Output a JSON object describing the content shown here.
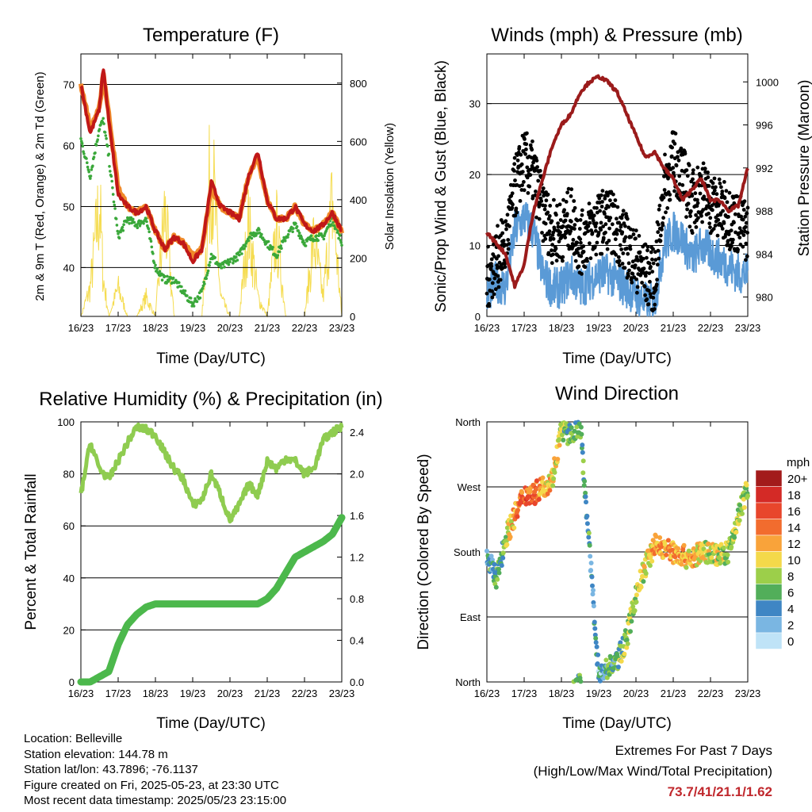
{
  "colors": {
    "t2m": "#c01818",
    "t9m": "#f08a2a",
    "td": "#3aa83a",
    "solar": "#f5dc50",
    "gust": "#000000",
    "wind": "#5a9ad6",
    "pressure": "#9b1b1b",
    "rh": "#8fcc50",
    "rain": "#4cb84c"
  },
  "time_ticks": [
    "16/23",
    "17/23",
    "18/23",
    "19/23",
    "20/23",
    "21/23",
    "22/23",
    "23/23"
  ],
  "panels": {
    "temperature": {
      "title": "Temperature (F)",
      "xlabel": "Time (Day/UTC)",
      "ylabel": "2m & 9m T (Red, Orange) & 2m Td (Green)",
      "ylabel2": "Solar Insolation (Yellow)",
      "y_ticks": [
        "70",
        "60",
        "50",
        "40"
      ],
      "y2_ticks": [
        "800",
        "600",
        "400",
        "200",
        "0"
      ]
    },
    "winds": {
      "title": "Winds (mph) & Pressure (mb)",
      "xlabel": "Time (Day/UTC)",
      "ylabel": "Sonic/Prop Wind & Gust (Blue, Black)",
      "ylabel2": "Station Pressure (Maroon)",
      "y_ticks": [
        "30",
        "20",
        "10",
        "0"
      ],
      "y2_ticks": [
        "1000",
        "996",
        "992",
        "988",
        "984",
        "980"
      ]
    },
    "humidity": {
      "title": "Relative Humidity (%) & Precipitation (in)",
      "xlabel": "Time (Day/UTC)",
      "ylabel": "Percent & Total Rainfall",
      "y_ticks": [
        "100",
        "80",
        "60",
        "40",
        "20",
        "0"
      ],
      "y2_ticks": [
        "2.4",
        "2.0",
        "1.6",
        "1.2",
        "0.8",
        "0.4",
        "0.0"
      ]
    },
    "direction": {
      "title": "Wind Direction",
      "xlabel": "Time (Day/UTC)",
      "ylabel": "Direction (Colored By Speed)",
      "y_ticks": [
        "North",
        "West",
        "South",
        "East",
        "North"
      ],
      "legend_title": "mph",
      "legend_labels": [
        "20+",
        "18",
        "16",
        "14",
        "12",
        "10",
        "8",
        "6",
        "4",
        "2",
        "0"
      ],
      "legend_colors": [
        "#a31b1b",
        "#d42a26",
        "#e8462c",
        "#f26c2e",
        "#f9a33a",
        "#f4d94a",
        "#9ccf4a",
        "#52ae5a",
        "#3f86c4",
        "#7ab6e2",
        "#bfe3f7"
      ]
    }
  },
  "chart_data": [
    {
      "type": "line",
      "title": "Temperature (F)",
      "xlabel": "Time (Day/UTC)",
      "ylabel": "2m & 9m T (Red, Orange) & 2m Td (Green)",
      "ylabel2": "Solar Insolation (Yellow)",
      "ylim": [
        32,
        75
      ],
      "y2lim": [
        0,
        900
      ],
      "x": [
        0,
        0.25,
        0.5,
        0.6,
        0.75,
        1,
        1.25,
        1.5,
        1.75,
        2,
        2.25,
        2.5,
        2.75,
        3,
        3.25,
        3.5,
        3.75,
        4,
        4.25,
        4.5,
        4.75,
        5,
        5.25,
        5.5,
        5.75,
        6,
        6.25,
        6.5,
        6.75,
        7
      ],
      "series": [
        {
          "name": "2m T",
          "values": [
            70,
            62,
            66,
            73,
            64,
            52,
            50,
            49,
            50,
            46,
            43,
            45,
            44,
            41,
            43,
            54,
            50,
            49,
            48,
            55,
            59,
            51,
            48,
            48,
            50,
            47,
            46,
            47,
            49,
            46
          ]
        },
        {
          "name": "9m T",
          "values": [
            70,
            63,
            66,
            72,
            65,
            53,
            50,
            49,
            50,
            46,
            43,
            45,
            44,
            42,
            43,
            53,
            50,
            49,
            48,
            55,
            58,
            51,
            48,
            48,
            50,
            47,
            46,
            47,
            49,
            46
          ]
        },
        {
          "name": "2m Td",
          "values": [
            61,
            55,
            63,
            64,
            58,
            45,
            48,
            47,
            48,
            40,
            38,
            38,
            36,
            34,
            36,
            42,
            40,
            41,
            42,
            45,
            46,
            44,
            42,
            45,
            47,
            44,
            45,
            45,
            48,
            44
          ]
        },
        {
          "name": "Solar",
          "values": [
            0,
            150,
            600,
            200,
            0,
            150,
            0,
            0,
            100,
            0,
            550,
            0,
            0,
            0,
            0,
            850,
            100,
            0,
            0,
            480,
            100,
            0,
            450,
            0,
            0,
            0,
            400,
            100,
            600,
            0
          ]
        }
      ]
    },
    {
      "type": "line",
      "title": "Winds (mph) & Pressure (mb)",
      "xlabel": "Time (Day/UTC)",
      "ylabel": "Sonic/Prop Wind & Gust (Blue, Black)",
      "ylabel2": "Station Pressure (Maroon)",
      "ylim": [
        0,
        37
      ],
      "y2lim": [
        978.2,
        1002.6
      ],
      "x": [
        0,
        0.25,
        0.5,
        0.75,
        1,
        1.25,
        1.5,
        1.75,
        2,
        2.25,
        2.5,
        2.75,
        3,
        3.25,
        3.5,
        3.75,
        4,
        4.25,
        4.5,
        4.75,
        5,
        5.25,
        5.5,
        5.75,
        6,
        6.25,
        6.5,
        6.75,
        7
      ],
      "series": [
        {
          "name": "Gust",
          "values": [
            5,
            8,
            10,
            18,
            22,
            20,
            15,
            12,
            12,
            14,
            10,
            12,
            13,
            14,
            12,
            10,
            8,
            6,
            5,
            18,
            22,
            20,
            16,
            18,
            16,
            15,
            14,
            13,
            12
          ]
        },
        {
          "name": "Wind",
          "values": [
            3,
            5,
            4,
            12,
            14,
            12,
            6,
            4,
            4,
            6,
            4,
            5,
            6,
            6,
            5,
            4,
            3,
            2,
            2,
            10,
            12,
            11,
            8,
            10,
            9,
            8,
            7,
            6,
            6
          ]
        },
        {
          "name": "Pressure",
          "values": [
            986,
            985,
            984,
            981,
            983,
            988,
            991,
            994,
            996,
            997,
            999,
            1000,
            1000.5,
            1000,
            999,
            997,
            995,
            993,
            993.5,
            992,
            991,
            989,
            990,
            991,
            989,
            989,
            988,
            988.5,
            992
          ]
        }
      ]
    },
    {
      "type": "line",
      "title": "Relative Humidity (%) & Precipitation (in)",
      "xlabel": "Time (Day/UTC)",
      "ylabel": "Percent & Total Rainfall",
      "ylim": [
        0,
        100
      ],
      "y2lim": [
        0,
        2.5
      ],
      "x": [
        0,
        0.25,
        0.5,
        0.75,
        1,
        1.25,
        1.5,
        1.75,
        2,
        2.25,
        2.5,
        2.75,
        3,
        3.25,
        3.5,
        3.75,
        4,
        4.25,
        4.5,
        4.75,
        5,
        5.25,
        5.5,
        5.75,
        6,
        6.25,
        6.5,
        6.75,
        7
      ],
      "series": [
        {
          "name": "RH",
          "values": [
            72,
            92,
            82,
            78,
            85,
            92,
            98,
            97,
            95,
            88,
            82,
            78,
            68,
            70,
            80,
            72,
            62,
            68,
            76,
            72,
            85,
            82,
            86,
            85,
            80,
            82,
            93,
            96,
            98
          ]
        },
        {
          "name": "Rainfall",
          "values": [
            0,
            0,
            0.05,
            0.1,
            0.36,
            0.55,
            0.65,
            0.72,
            0.75,
            0.75,
            0.75,
            0.75,
            0.75,
            0.75,
            0.75,
            0.75,
            0.75,
            0.75,
            0.75,
            0.75,
            0.8,
            0.9,
            1.05,
            1.2,
            1.25,
            1.3,
            1.35,
            1.42,
            1.58
          ]
        }
      ]
    },
    {
      "type": "scatter",
      "title": "Wind Direction",
      "xlabel": "Time (Day/UTC)",
      "ylabel": "Direction (Colored By Speed)",
      "ylim": [
        0,
        360
      ],
      "x": [
        0,
        0.25,
        0.5,
        0.75,
        1,
        1.25,
        1.5,
        1.75,
        2,
        2.25,
        2.5,
        3,
        3.25,
        3.5,
        3.75,
        4,
        4.25,
        4.5,
        5,
        5.25,
        5.5,
        5.75,
        6,
        6.25,
        6.5,
        6.75,
        7
      ],
      "series": [
        {
          "name": "Direction",
          "values": [
            180,
            140,
            200,
            230,
            260,
            260,
            270,
            280,
            350,
            340,
            360,
            10,
            20,
            30,
            60,
            120,
            160,
            190,
            180,
            175,
            170,
            180,
            180,
            175,
            180,
            230,
            270
          ]
        },
        {
          "name": "Speed",
          "values": [
            4,
            5,
            8,
            12,
            14,
            15,
            12,
            10,
            8,
            6,
            6,
            3,
            5,
            6,
            8,
            8,
            10,
            12,
            12,
            12,
            11,
            10,
            9,
            9,
            8,
            8,
            8
          ]
        }
      ]
    }
  ],
  "info": {
    "location": "Location: Belleville",
    "elevation": "Station elevation: 144.78 m",
    "latlon": "Station lat/lon: 43.7896; -76.1137",
    "created": "Figure created on Fri, 2025-05-23, at 23:30 UTC",
    "recent": "Most recent data timestamp: 2025/05/23 23:15:00"
  },
  "extremes": {
    "title": "Extremes For Past 7 Days",
    "subtitle": "(High/Low/Max Wind/Total Precipitation)",
    "values": "73.7/41/21.1/1.62"
  }
}
